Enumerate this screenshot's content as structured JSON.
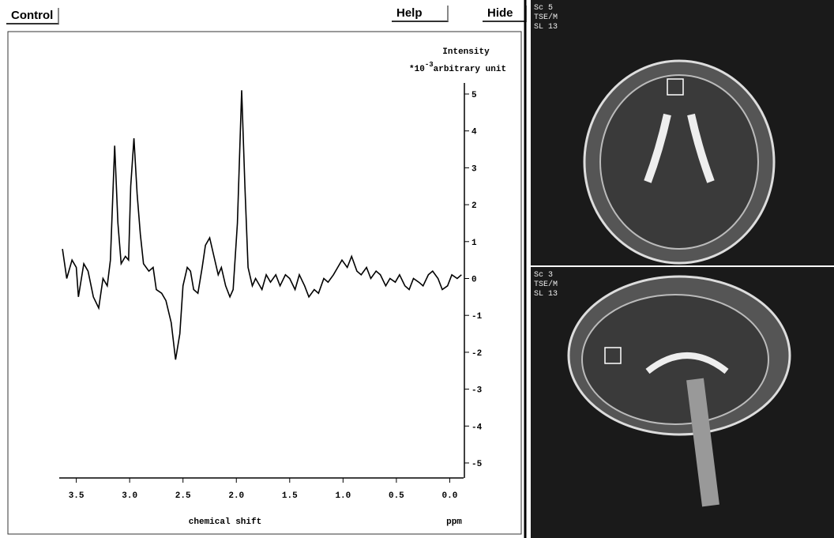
{
  "buttons": [
    "Control",
    "Help",
    "Hide"
  ],
  "chart_data": {
    "type": "line",
    "y_title": "Intensity",
    "y_unit_prefix": "*10",
    "y_unit_exponent": "-3",
    "y_unit": "arbitrary unit",
    "x_title": "chemical shift",
    "x_unit": "ppm",
    "color": "#000000",
    "xlim": [
      3.66,
      -0.13
    ],
    "ylim": [
      -5.3,
      5.3
    ],
    "xticks": [
      3.5,
      {
        "value": 3,
        "label": "3.0"
      },
      2.5,
      {
        "value": 2,
        "label": "2.0"
      },
      1.5,
      {
        "value": 1,
        "label": "1.0"
      },
      0.5,
      {
        "value": 0,
        "label": "0.0"
      }
    ],
    "yticks": [
      5,
      4,
      3,
      2,
      1,
      0,
      -1,
      -2,
      -3,
      -4,
      -5
    ],
    "x": [
      3.63,
      3.59,
      3.54,
      3.5,
      3.48,
      3.43,
      3.39,
      3.34,
      3.29,
      3.25,
      3.21,
      3.18,
      3.14,
      3.11,
      3.08,
      3.04,
      3.01,
      2.99,
      2.96,
      2.93,
      2.9,
      2.87,
      2.82,
      2.78,
      2.75,
      2.7,
      2.66,
      2.61,
      2.57,
      2.53,
      2.5,
      2.46,
      2.43,
      2.4,
      2.36,
      2.32,
      2.29,
      2.25,
      2.21,
      2.17,
      2.14,
      2.1,
      2.06,
      2.03,
      1.99,
      1.95,
      1.92,
      1.89,
      1.85,
      1.82,
      1.76,
      1.72,
      1.68,
      1.63,
      1.59,
      1.54,
      1.5,
      1.45,
      1.41,
      1.36,
      1.32,
      1.27,
      1.23,
      1.18,
      1.14,
      1.09,
      1.05,
      1.01,
      0.96,
      0.92,
      0.87,
      0.83,
      0.78,
      0.74,
      0.69,
      0.65,
      0.6,
      0.56,
      0.51,
      0.47,
      0.42,
      0.38,
      0.34,
      0.29,
      0.25,
      0.2,
      0.16,
      0.11,
      0.07,
      0.02,
      -0.02,
      -0.07,
      -0.11
    ],
    "values": [
      0.8,
      0.0,
      0.5,
      0.3,
      -0.5,
      0.4,
      0.2,
      -0.5,
      -0.8,
      0.0,
      -0.2,
      0.5,
      3.6,
      1.5,
      0.4,
      0.6,
      0.5,
      2.5,
      3.8,
      2.3,
      1.2,
      0.4,
      0.2,
      0.3,
      -0.3,
      -0.4,
      -0.6,
      -1.2,
      -2.2,
      -1.5,
      -0.2,
      0.3,
      0.2,
      -0.3,
      -0.4,
      0.3,
      0.9,
      1.1,
      0.6,
      0.1,
      0.3,
      -0.2,
      -0.5,
      -0.3,
      1.5,
      5.1,
      2.5,
      0.3,
      -0.2,
      0.0,
      -0.3,
      0.1,
      -0.1,
      0.1,
      -0.2,
      0.1,
      0.0,
      -0.3,
      0.1,
      -0.2,
      -0.5,
      -0.3,
      -0.4,
      0.0,
      -0.1,
      0.1,
      0.3,
      0.5,
      0.3,
      0.6,
      0.2,
      0.1,
      0.3,
      0.0,
      0.2,
      0.1,
      -0.2,
      0.0,
      -0.1,
      0.1,
      -0.2,
      -0.3,
      0.0,
      -0.1,
      -0.2,
      0.1,
      0.2,
      0.0,
      -0.3,
      -0.2,
      0.1,
      0.0,
      0.1
    ]
  },
  "images": [
    {
      "labels": [
        "Sc 5",
        "TSE/M",
        "SL 13"
      ]
    },
    {
      "labels": [
        "Sc 3",
        "TSE/M",
        "SL 13"
      ]
    }
  ]
}
